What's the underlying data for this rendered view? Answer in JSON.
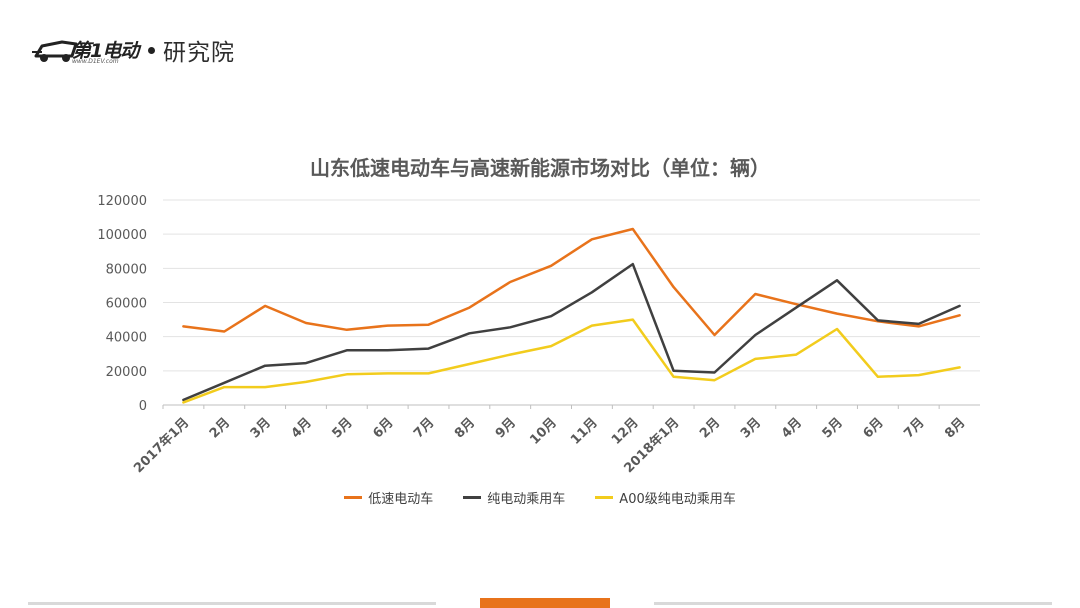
{
  "logo": {
    "brand": "第1电动",
    "url": "www.D1EV.com",
    "suffix": "研究院"
  },
  "chart_data": {
    "type": "line",
    "title": "山东低速电动车与高速新能源市场对比（单位：辆）",
    "categories": [
      "2017年1月",
      "2月",
      "3月",
      "4月",
      "5月",
      "6月",
      "7月",
      "8月",
      "9月",
      "10月",
      "11月",
      "12月",
      "2018年1月",
      "2月",
      "3月",
      "4月",
      "5月",
      "6月",
      "7月",
      "8月"
    ],
    "y_ticks": [
      "0",
      "20000",
      "40000",
      "60000",
      "80000",
      "100000",
      "120000"
    ],
    "ylim": [
      0,
      120000
    ],
    "grid": true,
    "legend_position": "bottom",
    "series": [
      {
        "name": "低速电动车",
        "color": "#e8731b",
        "values": [
          46000,
          43000,
          58000,
          48000,
          44000,
          46500,
          47000,
          57000,
          72000,
          81500,
          97000,
          103000,
          69000,
          41000,
          65000,
          59000,
          53500,
          49000,
          46000,
          52500
        ]
      },
      {
        "name": "纯电动乘用车",
        "color": "#404040",
        "values": [
          3000,
          13000,
          23000,
          24500,
          32000,
          32000,
          33000,
          42000,
          45500,
          52000,
          66000,
          82500,
          20000,
          19000,
          41000,
          57000,
          73000,
          49500,
          47500,
          58000
        ]
      },
      {
        "name": "A00级纯电动乘用车",
        "color": "#f2cc1d",
        "values": [
          1500,
          10500,
          10500,
          13500,
          18000,
          18500,
          18500,
          24000,
          29500,
          34500,
          46500,
          50000,
          16500,
          14500,
          27000,
          29500,
          44500,
          16500,
          17500,
          22000
        ]
      }
    ]
  }
}
